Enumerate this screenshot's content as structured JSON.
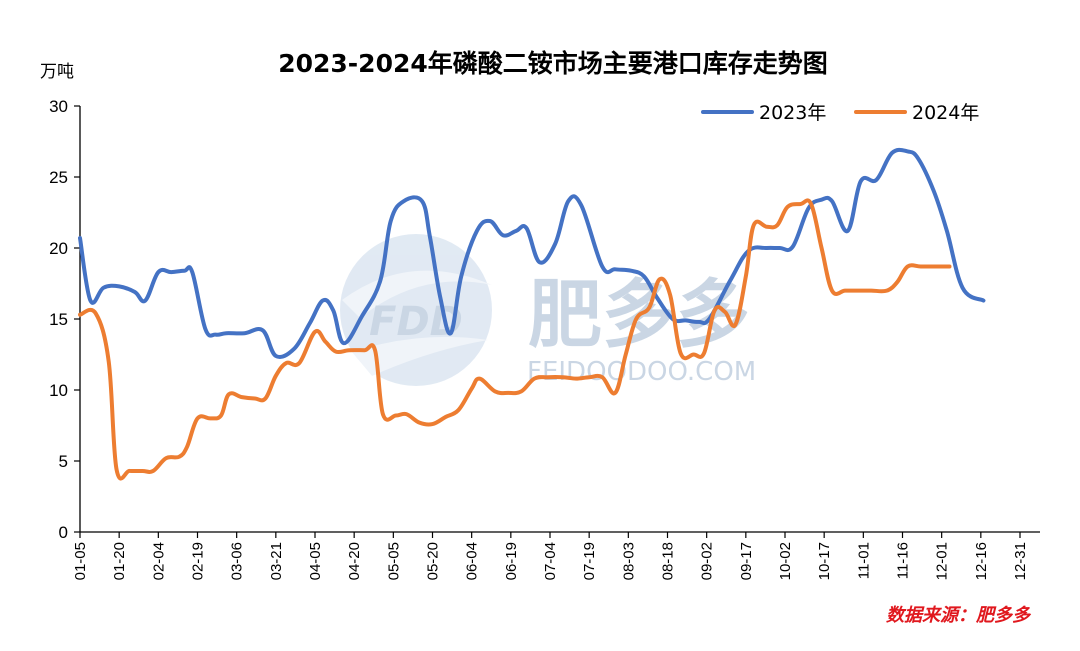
{
  "watermark": {
    "logo_text": "FDD",
    "brand_name": "肥多多",
    "domain": "FEIDOODOO.COM"
  },
  "source_note": "数据来源：肥多多",
  "colors": {
    "series_2023": "#4472c4",
    "series_2024": "#ed7d31",
    "source_text": "#e0181e",
    "watermark": "#9fb6cf"
  },
  "chart_data": {
    "type": "line",
    "title": "2023-2024年磷酸二铵市场主要港口库存走势图",
    "ylabel": "万吨",
    "xlabel": "",
    "ylim": [
      0,
      30
    ],
    "yticks": [
      0,
      5,
      10,
      15,
      20,
      25,
      30
    ],
    "xlim_days": [
      5,
      365
    ],
    "xticks": [
      {
        "label": "01-05",
        "day": 5
      },
      {
        "label": "01-20",
        "day": 20
      },
      {
        "label": "02-04",
        "day": 35
      },
      {
        "label": "02-19",
        "day": 50
      },
      {
        "label": "03-06",
        "day": 65
      },
      {
        "label": "03-21",
        "day": 80
      },
      {
        "label": "04-05",
        "day": 95
      },
      {
        "label": "04-20",
        "day": 110
      },
      {
        "label": "05-05",
        "day": 125
      },
      {
        "label": "05-20",
        "day": 140
      },
      {
        "label": "06-04",
        "day": 155
      },
      {
        "label": "06-19",
        "day": 170
      },
      {
        "label": "07-04",
        "day": 185
      },
      {
        "label": "07-19",
        "day": 200
      },
      {
        "label": "08-03",
        "day": 215
      },
      {
        "label": "08-18",
        "day": 230
      },
      {
        "label": "09-02",
        "day": 245
      },
      {
        "label": "09-17",
        "day": 260
      },
      {
        "label": "10-02",
        "day": 275
      },
      {
        "label": "10-17",
        "day": 290
      },
      {
        "label": "11-01",
        "day": 305
      },
      {
        "label": "11-16",
        "day": 320
      },
      {
        "label": "12-01",
        "day": 335
      },
      {
        "label": "12-16",
        "day": 350
      },
      {
        "label": "12-31",
        "day": 365
      }
    ],
    "grid": false,
    "legend_position": "top-right",
    "series": [
      {
        "name": "2023年",
        "color": "#4472c4",
        "points": [
          [
            5,
            20.7
          ],
          [
            9,
            16.3
          ],
          [
            14,
            17.2
          ],
          [
            20,
            17.3
          ],
          [
            26,
            16.9
          ],
          [
            30,
            16.3
          ],
          [
            35,
            18.3
          ],
          [
            40,
            18.3
          ],
          [
            45,
            18.4
          ],
          [
            48,
            18.3
          ],
          [
            53,
            14.3
          ],
          [
            57,
            13.9
          ],
          [
            61,
            14.0
          ],
          [
            68,
            14.0
          ],
          [
            75,
            14.2
          ],
          [
            80,
            12.4
          ],
          [
            87,
            12.9
          ],
          [
            93,
            14.7
          ],
          [
            98,
            16.3
          ],
          [
            102,
            15.6
          ],
          [
            106,
            13.3
          ],
          [
            113,
            15.2
          ],
          [
            120,
            17.7
          ],
          [
            124,
            21.9
          ],
          [
            129,
            23.3
          ],
          [
            136,
            23.3
          ],
          [
            139,
            20.8
          ],
          [
            143,
            16.5
          ],
          [
            147,
            14.0
          ],
          [
            151,
            18.0
          ],
          [
            157,
            21.2
          ],
          [
            162,
            21.9
          ],
          [
            167,
            20.9
          ],
          [
            172,
            21.2
          ],
          [
            176,
            21.4
          ],
          [
            181,
            19.0
          ],
          [
            187,
            20.3
          ],
          [
            192,
            23.3
          ],
          [
            197,
            23.0
          ],
          [
            205,
            18.7
          ],
          [
            210,
            18.5
          ],
          [
            216,
            18.4
          ],
          [
            221,
            18.0
          ],
          [
            226,
            16.5
          ],
          [
            232,
            15.0
          ],
          [
            237,
            14.9
          ],
          [
            242,
            14.8
          ],
          [
            246,
            15.0
          ],
          [
            254,
            17.7
          ],
          [
            261,
            19.8
          ],
          [
            268,
            20.0
          ],
          [
            273,
            20.0
          ],
          [
            278,
            20.1
          ],
          [
            284,
            22.8
          ],
          [
            289,
            23.4
          ],
          [
            293,
            23.3
          ],
          [
            299,
            21.2
          ],
          [
            304,
            24.7
          ],
          [
            310,
            24.8
          ],
          [
            316,
            26.7
          ],
          [
            322,
            26.8
          ],
          [
            326,
            26.3
          ],
          [
            332,
            24.0
          ],
          [
            337,
            21.2
          ],
          [
            343,
            17.2
          ],
          [
            351,
            16.3
          ]
        ]
      },
      {
        "name": "2024年",
        "color": "#ed7d31",
        "points": [
          [
            5,
            15.3
          ],
          [
            11,
            15.4
          ],
          [
            16,
            12.0
          ],
          [
            19,
            4.4
          ],
          [
            24,
            4.3
          ],
          [
            29,
            4.3
          ],
          [
            33,
            4.3
          ],
          [
            38,
            5.2
          ],
          [
            43,
            5.3
          ],
          [
            46,
            6.0
          ],
          [
            50,
            8.0
          ],
          [
            55,
            8.0
          ],
          [
            59,
            8.2
          ],
          [
            62,
            9.7
          ],
          [
            67,
            9.5
          ],
          [
            72,
            9.4
          ],
          [
            76,
            9.4
          ],
          [
            80,
            11.0
          ],
          [
            84,
            11.9
          ],
          [
            89,
            11.9
          ],
          [
            95,
            14.1
          ],
          [
            99,
            13.4
          ],
          [
            103,
            12.7
          ],
          [
            108,
            12.8
          ],
          [
            114,
            12.8
          ],
          [
            118,
            12.8
          ],
          [
            121,
            8.3
          ],
          [
            126,
            8.2
          ],
          [
            130,
            8.3
          ],
          [
            135,
            7.7
          ],
          [
            140,
            7.6
          ],
          [
            145,
            8.1
          ],
          [
            150,
            8.6
          ],
          [
            155,
            10.1
          ],
          [
            158,
            10.8
          ],
          [
            164,
            9.9
          ],
          [
            169,
            9.8
          ],
          [
            174,
            9.9
          ],
          [
            179,
            10.8
          ],
          [
            184,
            10.9
          ],
          [
            190,
            10.9
          ],
          [
            195,
            10.8
          ],
          [
            200,
            10.9
          ],
          [
            205,
            10.9
          ],
          [
            210,
            9.8
          ],
          [
            214,
            12.5
          ],
          [
            218,
            15.0
          ],
          [
            223,
            15.8
          ],
          [
            227,
            17.8
          ],
          [
            231,
            16.7
          ],
          [
            235,
            12.6
          ],
          [
            240,
            12.5
          ],
          [
            244,
            12.6
          ],
          [
            248,
            15.6
          ],
          [
            252,
            15.5
          ],
          [
            256,
            14.6
          ],
          [
            260,
            18.0
          ],
          [
            263,
            21.6
          ],
          [
            268,
            21.5
          ],
          [
            272,
            21.6
          ],
          [
            276,
            22.9
          ],
          [
            281,
            23.1
          ],
          [
            285,
            23.1
          ],
          [
            289,
            20.0
          ],
          [
            293,
            17.0
          ],
          [
            298,
            17.0
          ],
          [
            303,
            17.0
          ],
          [
            308,
            17.0
          ],
          [
            314,
            17.0
          ],
          [
            318,
            17.6
          ],
          [
            322,
            18.7
          ],
          [
            327,
            18.7
          ],
          [
            333,
            18.7
          ],
          [
            338,
            18.7
          ]
        ]
      }
    ]
  }
}
